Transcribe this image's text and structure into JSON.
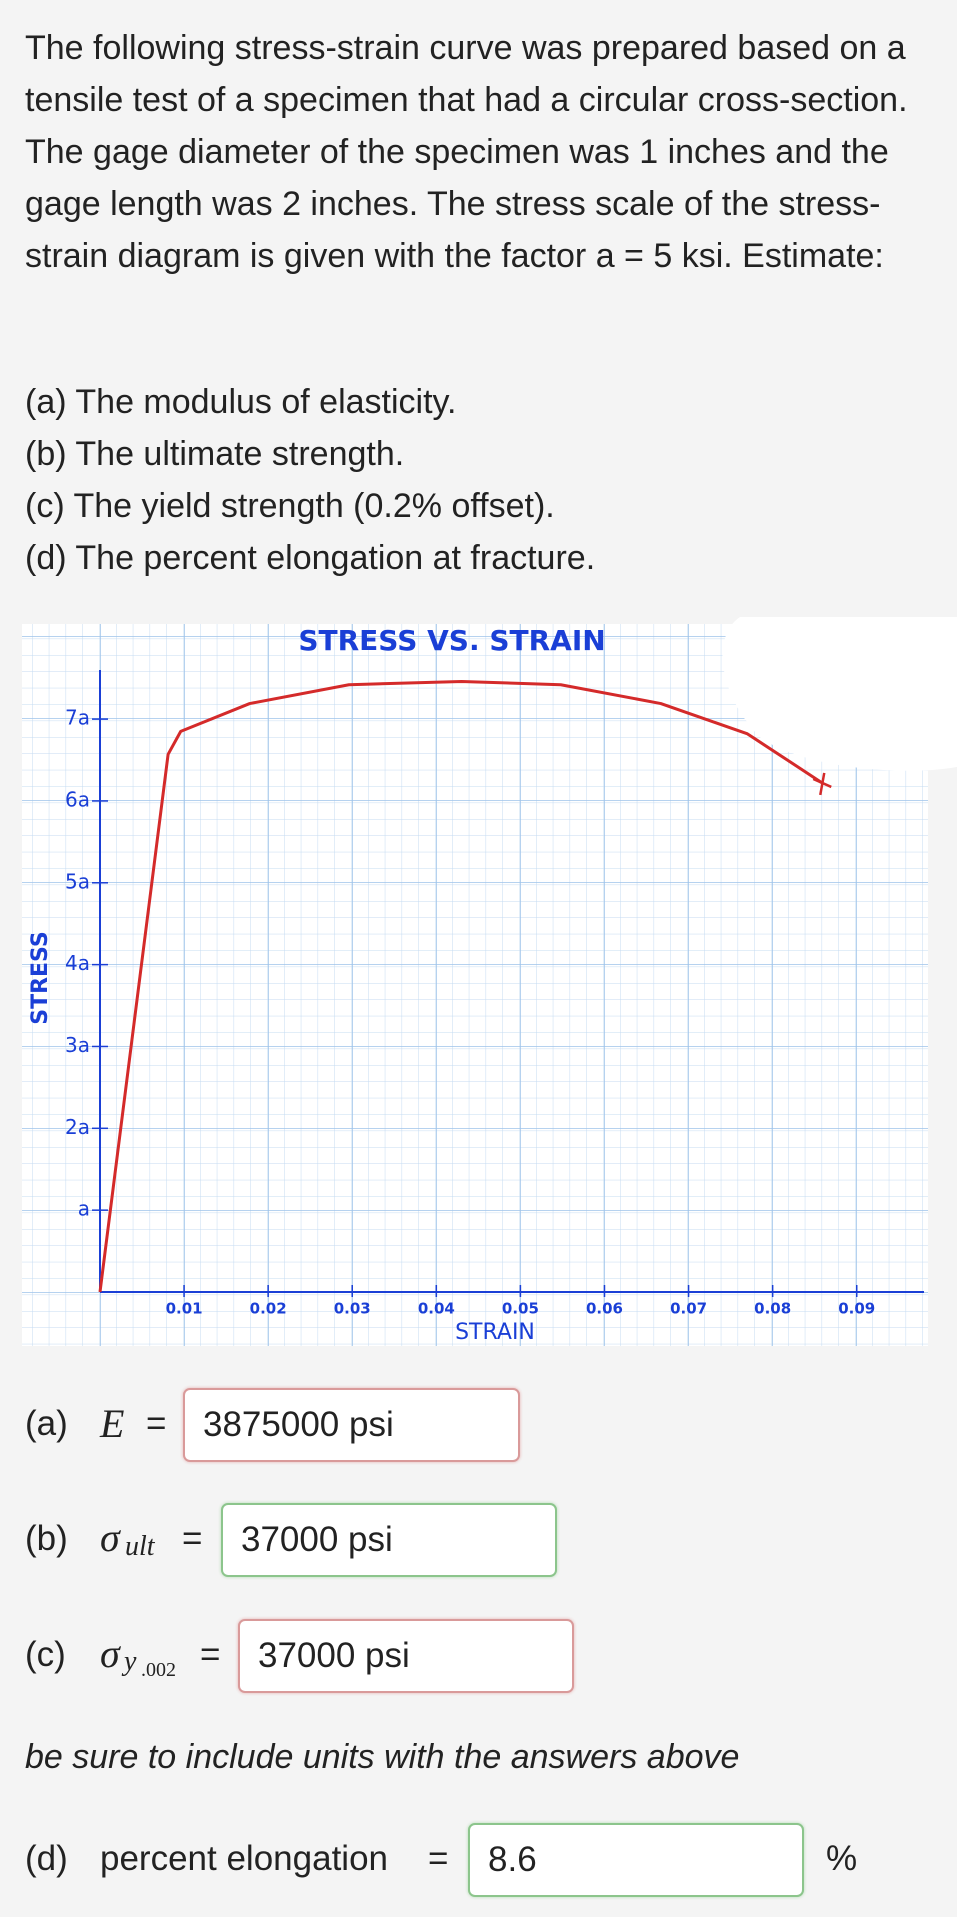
{
  "question": {
    "text": "The following stress-strain curve was prepared based on a tensile test of a specimen that had a circular cross-section. The gage diameter of the specimen was 1 inches and the gage length was 2 inches. The stress scale of the stress-strain diagram is given with the factor a = 5 ksi. Estimate:",
    "parts": [
      "(a) The modulus of elasticity.",
      "(b) The ultimate strength.",
      "(c) The yield strength (0.2% offset).",
      "(d) The percent elongation at fracture."
    ]
  },
  "chart_data": {
    "type": "line",
    "title": "STRESS VS. STRAIN",
    "x_label": "STRAIN",
    "y_label": "STRESS",
    "x": [
      0,
      0.0081,
      0.0096,
      0.0178,
      0.0296,
      0.043,
      0.0548,
      0.0667,
      0.077,
      0.0859
    ],
    "series": [
      {
        "color": "#d42a2a",
        "values": [
          0,
          6.57,
          6.85,
          7.19,
          7.42,
          7.46,
          7.42,
          7.19,
          6.82,
          6.22
        ]
      }
    ],
    "xlim": [
      0,
      0.098
    ],
    "ylim": [
      0,
      7.6
    ],
    "xticks": [
      0.01,
      0.02,
      0.03,
      0.04,
      0.05,
      0.06,
      0.07,
      0.08,
      0.09
    ],
    "yticks": [
      {
        "value": 1,
        "label": "a"
      },
      {
        "value": 2,
        "label": "2a"
      },
      {
        "value": 3,
        "label": "3a"
      },
      {
        "value": 4,
        "label": "4a"
      },
      {
        "value": 5,
        "label": "5a"
      },
      {
        "value": 6,
        "label": "6a"
      },
      {
        "value": 7,
        "label": "7a"
      }
    ]
  },
  "answers": {
    "a": {
      "part": "(a)",
      "symbol": "E",
      "equals": "=",
      "value": "3875000 psi"
    },
    "b": {
      "part": "(b)",
      "symbol": "σ",
      "subscript": "ult",
      "equals": "=",
      "value": "37000 psi"
    },
    "c": {
      "part": "(c)",
      "symbol": "σ",
      "subscript": "y",
      "subsubscript": ".002",
      "equals": "=",
      "value": "37000 psi"
    },
    "note": "be sure to include units with the answers above",
    "d": {
      "part": "(d)",
      "label": "percent elongation",
      "equals": "=",
      "value": "8.6",
      "unit": "%"
    }
  }
}
